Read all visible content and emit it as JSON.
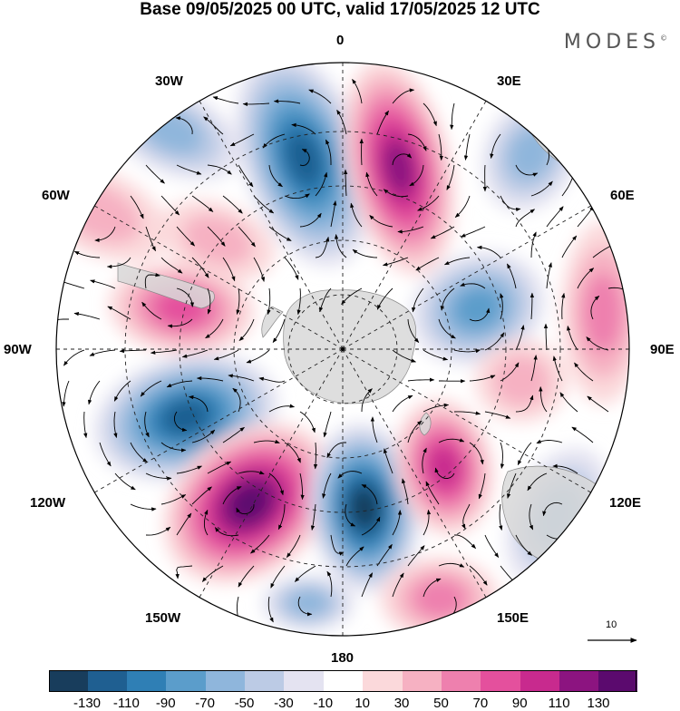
{
  "title": "Base 09/05/2025 00 UTC, valid 17/05/2025 12 UTC",
  "brand": "MODES",
  "brand_mark": "©",
  "longitude_labels": {
    "lon_0": "0",
    "lon_30e": "30E",
    "lon_60e": "60E",
    "lon_90e": "90E",
    "lon_120e": "120E",
    "lon_150e": "150E",
    "lon_180": "180",
    "lon_150w": "150W",
    "lon_120w": "120W",
    "lon_90w": "90W",
    "lon_60w": "60W",
    "lon_30w": "30W"
  },
  "reference_vector_label": "10",
  "colorbar": {
    "tick_labels": [
      "-130",
      "-110",
      "-90",
      "-70",
      "-50",
      "-30",
      "-10",
      "10",
      "30",
      "50",
      "70",
      "90",
      "110",
      "130"
    ],
    "colors": [
      "#183d5c",
      "#1f5f91",
      "#2f7fb5",
      "#5b9dcb",
      "#8fb6dc",
      "#bccbe5",
      "#e4e3f1",
      "#ffffff",
      "#fbd9db",
      "#f6b1c2",
      "#ee80ae",
      "#e4509d",
      "#c82a8e",
      "#8c1480",
      "#5b0a6e"
    ]
  },
  "map": {
    "projection": "south polar stereographic",
    "graticule": "dashed, every 30 degrees longitude",
    "anomaly_centers": [
      {
        "type": "negative",
        "near": "0/30W",
        "level": -110
      },
      {
        "type": "positive",
        "near": "0/15E",
        "level": 110
      },
      {
        "type": "negative",
        "near": "60E-90E",
        "level": -70
      },
      {
        "type": "positive",
        "near": "90E",
        "level": 50
      },
      {
        "type": "positive",
        "near": "60W-90W",
        "level": 70
      },
      {
        "type": "negative",
        "near": "90W-120W",
        "level": -110
      },
      {
        "type": "positive",
        "near": "120W-150W",
        "level": 130
      },
      {
        "type": "negative",
        "near": "150W-180",
        "level": -130
      },
      {
        "type": "positive",
        "near": "150E",
        "level": 90
      },
      {
        "type": "negative",
        "near": "120E",
        "level": -50
      }
    ]
  }
}
